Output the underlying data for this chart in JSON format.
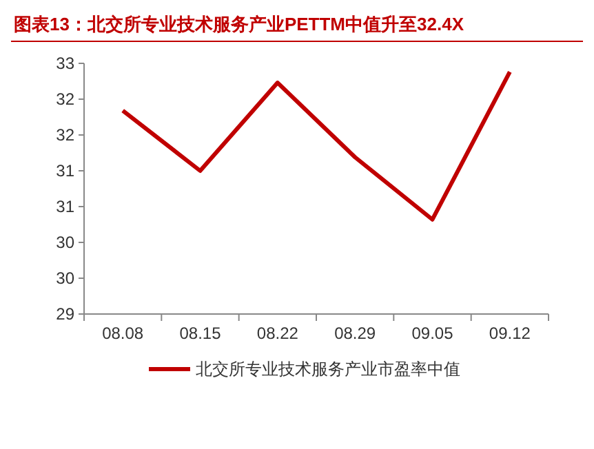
{
  "chart_data": {
    "type": "line",
    "title": "图表13：北交所专业技术服务产业PETTM中值升至32.4X",
    "categories": [
      "08.08",
      "08.15",
      "08.22",
      "08.29",
      "09.05",
      "09.12"
    ],
    "series": [
      {
        "name": "北交所专业技术服务产业市盈率中值",
        "color": "#c00000",
        "values": [
          31.84,
          31.0,
          32.23,
          31.19,
          30.32,
          32.38
        ]
      }
    ],
    "ylim": [
      29,
      32.5
    ],
    "yticks": [
      29,
      {
        "value": 29.5,
        "label": "30"
      },
      30,
      {
        "value": 30.5,
        "label": "31"
      },
      31,
      {
        "value": 31.5,
        "label": "32"
      },
      32,
      {
        "value": 32.5,
        "label": "33"
      }
    ],
    "grid": false,
    "legend": "bottom",
    "marker": "none",
    "line_style": "solid"
  }
}
